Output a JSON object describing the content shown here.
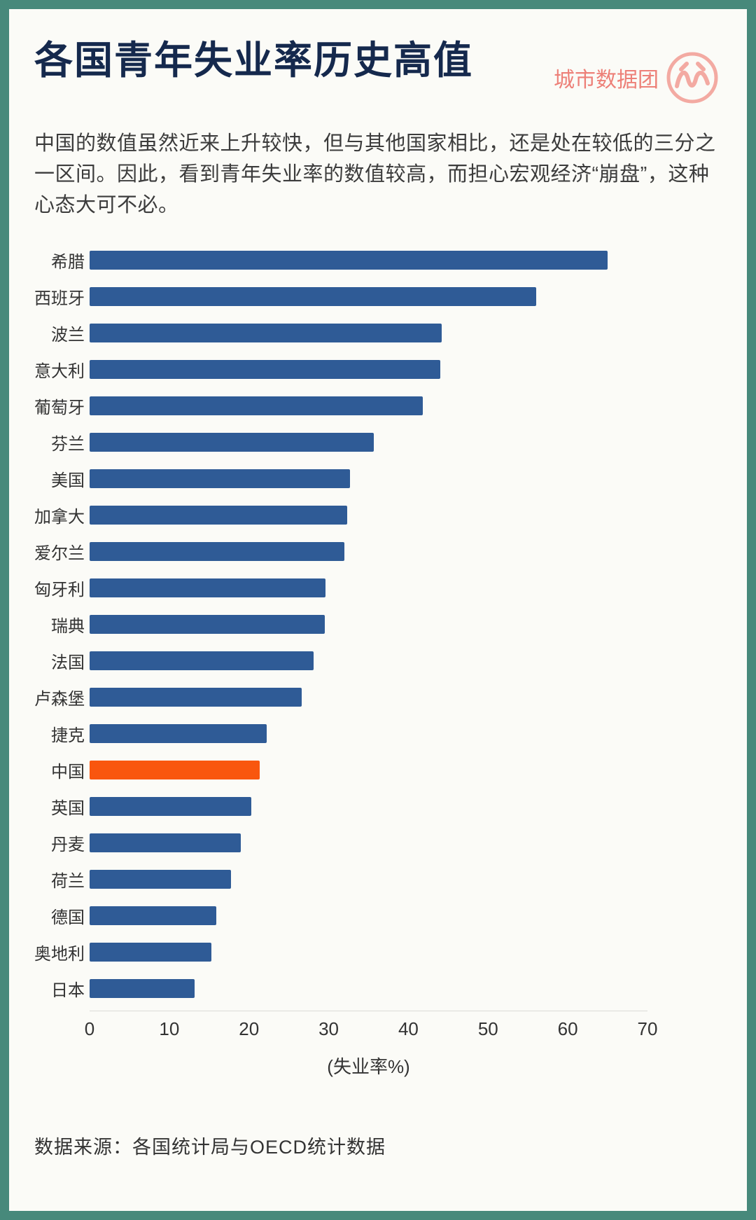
{
  "page": {
    "title": "各国青年失业率历史高值",
    "brand": "城市数据团",
    "description": "中国的数值虽然近来上升较快，但与其他国家相比，还是处在较低的三分之一区间。因此，看到青年失业率的数值较高，而担心宏观经济“崩盘”，这种心态大可不必。",
    "source": "数据来源：各国统计局与OECD统计数据"
  },
  "colors": {
    "frame": "#47897b",
    "background": "#fbfbf7",
    "title": "#15294d",
    "brand": "#ed8078",
    "bar": "#2f5b96",
    "highlight": "#f9560e"
  },
  "chart_data": {
    "type": "bar",
    "orientation": "horizontal",
    "title": "各国青年失业率历史高值",
    "xlabel": "(失业率%)",
    "ylabel": "",
    "xlim": [
      0,
      70
    ],
    "x_ticks": [
      0,
      10,
      20,
      30,
      40,
      50,
      60,
      70
    ],
    "grid": false,
    "legend": false,
    "categories": [
      "希腊",
      "西班牙",
      "波兰",
      "意大利",
      "葡萄牙",
      "芬兰",
      "美国",
      "加拿大",
      "爱尔兰",
      "匈牙利",
      "瑞典",
      "法国",
      "卢森堡",
      "捷克",
      "中国",
      "英国",
      "丹麦",
      "荷兰",
      "德国",
      "奥地利",
      "日本"
    ],
    "values": [
      65,
      56,
      44.2,
      44,
      41.8,
      35.7,
      32.7,
      32.3,
      32,
      29.6,
      29.5,
      28.1,
      26.6,
      22.2,
      21.3,
      20.3,
      19,
      17.7,
      15.9,
      15.3,
      13.2
    ],
    "highlight_category": "中国",
    "bar_color": "#2f5b96",
    "highlight_color": "#f9560e"
  }
}
